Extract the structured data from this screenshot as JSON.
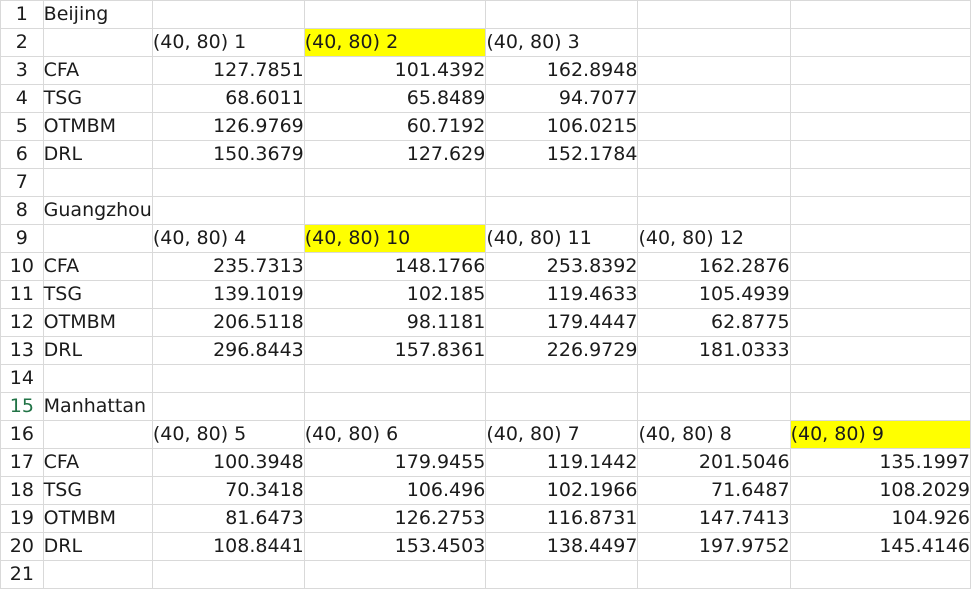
{
  "sheet": {
    "rows": [
      {
        "num": "1",
        "cells": [
          "Beijing",
          "",
          "",
          "",
          "",
          ""
        ]
      },
      {
        "num": "2",
        "cells": [
          "",
          "(40,  80) 1",
          "(40,  80) 2",
          "(40,  80) 3",
          "",
          ""
        ]
      },
      {
        "num": "3",
        "cells": [
          "CFA",
          "127.7851",
          "101.4392",
          "162.8948",
          "",
          ""
        ]
      },
      {
        "num": "4",
        "cells": [
          "TSG",
          "68.6011",
          "65.8489",
          "94.7077",
          "",
          ""
        ]
      },
      {
        "num": "5",
        "cells": [
          "OTMBM",
          "126.9769",
          "60.7192",
          "106.0215",
          "",
          ""
        ]
      },
      {
        "num": "6",
        "cells": [
          "DRL",
          "150.3679",
          "127.629",
          "152.1784",
          "",
          ""
        ]
      },
      {
        "num": "7",
        "cells": [
          "",
          "",
          "",
          "",
          "",
          ""
        ]
      },
      {
        "num": "8",
        "cells": [
          "Guangzhou",
          "",
          "",
          "",
          "",
          ""
        ]
      },
      {
        "num": "9",
        "cells": [
          "",
          "(40,  80) 4",
          "(40,  80) 10",
          "(40,  80) 11",
          "(40,  80) 12",
          ""
        ]
      },
      {
        "num": "10",
        "cells": [
          "CFA",
          "235.7313",
          "148.1766",
          "253.8392",
          "162.2876",
          ""
        ]
      },
      {
        "num": "11",
        "cells": [
          "TSG",
          "139.1019",
          "102.185",
          "119.4633",
          "105.4939",
          ""
        ]
      },
      {
        "num": "12",
        "cells": [
          "OTMBM",
          "206.5118",
          "98.1181",
          "179.4447",
          "62.8775",
          ""
        ]
      },
      {
        "num": "13",
        "cells": [
          "DRL",
          "296.8443",
          "157.8361",
          "226.9729",
          "181.0333",
          ""
        ]
      },
      {
        "num": "14",
        "cells": [
          "",
          "",
          "",
          "",
          "",
          ""
        ]
      },
      {
        "num": "15",
        "cells": [
          "Manhattan",
          "",
          "",
          "",
          "",
          ""
        ]
      },
      {
        "num": "16",
        "cells": [
          "",
          "(40,  80) 5",
          "(40,  80) 6",
          "(40,  80) 7",
          "(40,  80) 8",
          "(40,  80) 9"
        ]
      },
      {
        "num": "17",
        "cells": [
          "CFA",
          "100.3948",
          "179.9455",
          "119.1442",
          "201.5046",
          "135.1997"
        ]
      },
      {
        "num": "18",
        "cells": [
          "TSG",
          "70.3418",
          "106.496",
          "102.1966",
          "71.6487",
          "108.2029"
        ]
      },
      {
        "num": "19",
        "cells": [
          "OTMBM",
          "81.6473",
          "126.2753",
          "116.8731",
          "147.7413",
          "104.926"
        ]
      },
      {
        "num": "20",
        "cells": [
          "DRL",
          "108.8441",
          "153.4503",
          "138.4497",
          "197.9752",
          "145.4146"
        ]
      },
      {
        "num": "21",
        "cells": [
          "",
          "",
          "",
          "",
          "",
          ""
        ]
      }
    ]
  },
  "highlight_color": "#ffff00",
  "highlighted_cells": [
    [
      "2",
      2
    ],
    [
      "9",
      2
    ],
    [
      "16",
      5
    ]
  ],
  "selected_row_header": "15"
}
